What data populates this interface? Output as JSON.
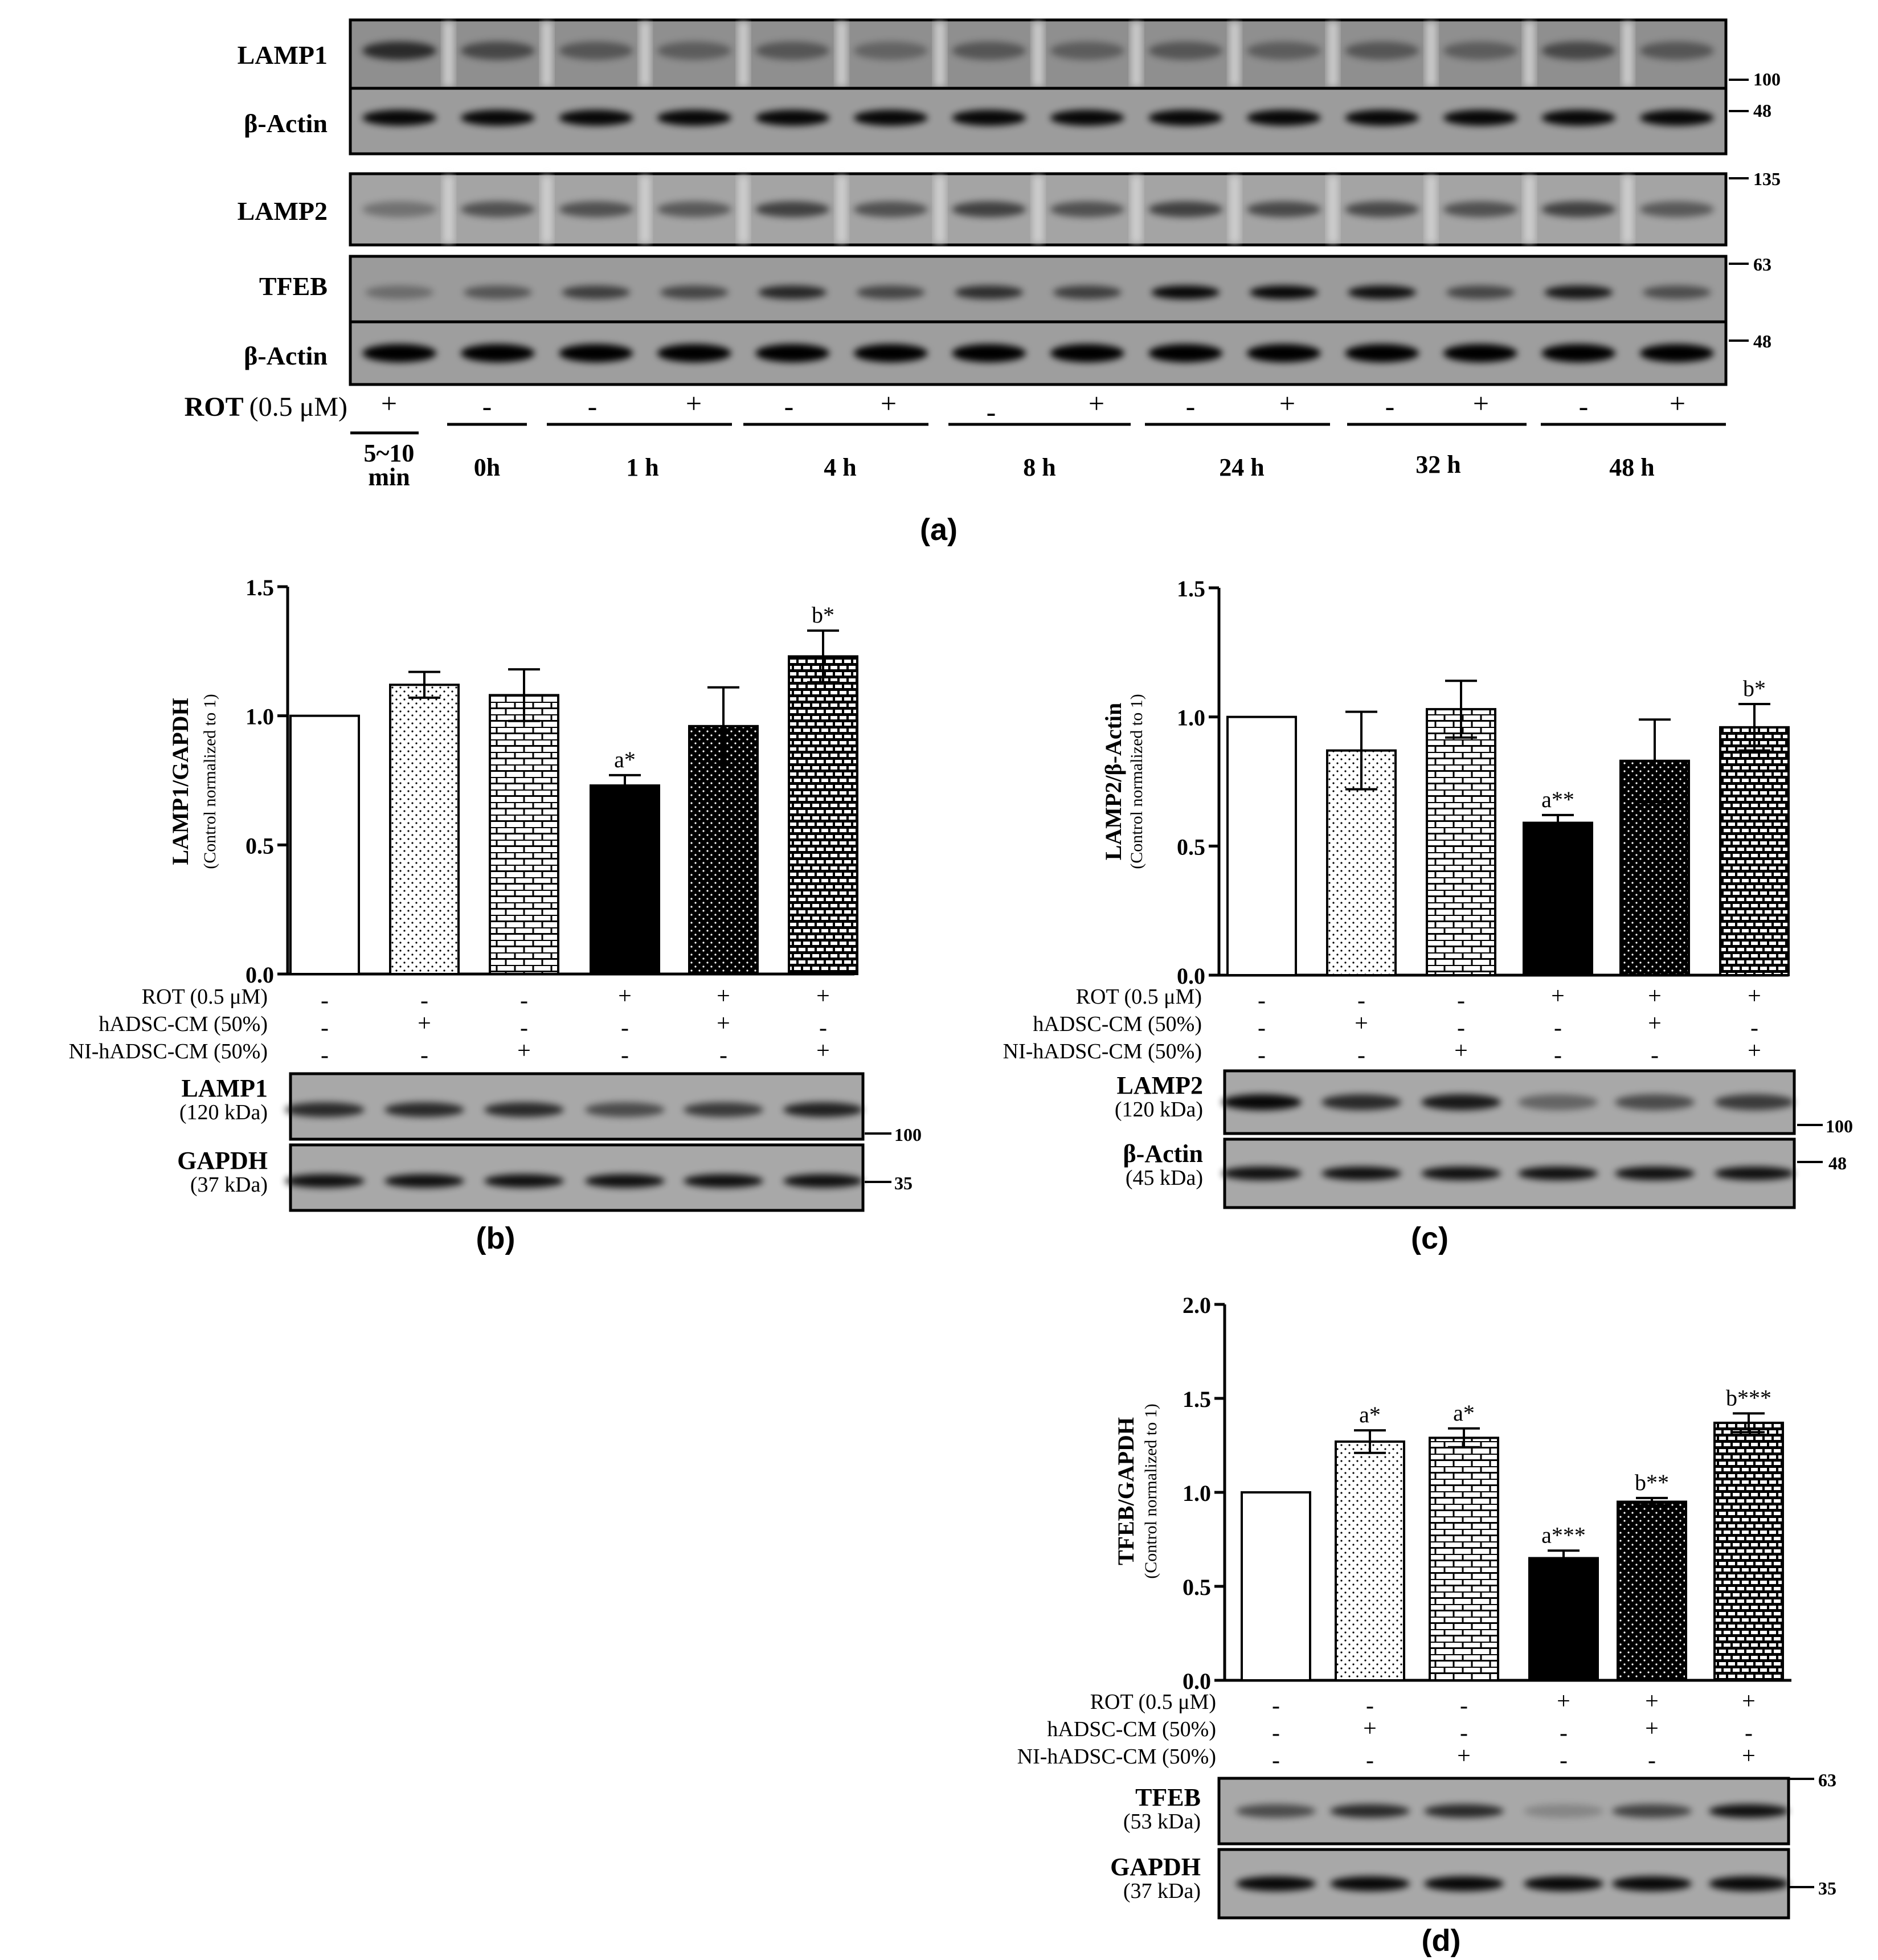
{
  "panel_a": {
    "label": "(a)",
    "blots": [
      {
        "name": "LAMP1",
        "marker": "100"
      },
      {
        "name": "β-Actin",
        "marker": "48"
      },
      {
        "name": "LAMP2",
        "marker": "135"
      },
      {
        "name": "TFEB",
        "marker": "63"
      },
      {
        "name": "β-Actin",
        "marker": "48"
      }
    ],
    "rot_label_bold": "ROT",
    "rot_label_rest": "(0.5 μM)",
    "lane_signs": [
      "+",
      "-",
      "-",
      "+",
      "-",
      "+",
      "-",
      "+",
      "-",
      "+",
      "-",
      "+",
      "-",
      "+"
    ],
    "times": [
      "5~10",
      "min",
      "0h",
      "1 h",
      "4 h",
      "8 h",
      "24 h",
      "32 h",
      "48 h"
    ]
  },
  "panel_b": {
    "label": "(b)",
    "chart_data": {
      "type": "bar",
      "ylabel": "LAMP1/GAPDH",
      "ylabel_sub": "(Control normalized to 1)",
      "ylim": [
        0,
        1.5
      ],
      "yticks": [
        "0.0",
        "0.5",
        "1.0",
        "1.5"
      ],
      "values": [
        1.0,
        1.12,
        1.08,
        0.73,
        0.96,
        1.23
      ],
      "errors": [
        0,
        0.05,
        0.1,
        0.04,
        0.15,
        0.1
      ],
      "annotations": [
        "",
        "",
        "",
        "a*",
        "",
        "b*"
      ],
      "patterns": [
        "white",
        "dots",
        "bricks",
        "black",
        "blackdots",
        "bricks-dark"
      ]
    },
    "conditions": [
      {
        "label": "ROT (0.5 μM)",
        "signs": [
          "-",
          "-",
          "-",
          "+",
          "+",
          "+"
        ]
      },
      {
        "label": "hADSC-CM (50%)",
        "signs": [
          "-",
          "+",
          "-",
          "-",
          "+",
          "-"
        ]
      },
      {
        "label": "NI-hADSC-CM (50%)",
        "signs": [
          "-",
          "-",
          "+",
          "-",
          "-",
          "+"
        ]
      }
    ],
    "blots": [
      {
        "name": "LAMP1",
        "size": "(120 kDa)",
        "marker": "100"
      },
      {
        "name": "GAPDH",
        "size": "(37 kDa)",
        "marker": "35"
      }
    ]
  },
  "panel_c": {
    "label": "(c)",
    "chart_data": {
      "type": "bar",
      "ylabel": "LAMP2/β-Actin",
      "ylabel_sub": "(Control normalized to 1)",
      "ylim": [
        0,
        1.5
      ],
      "yticks": [
        "0.0",
        "0.5",
        "1.0",
        "1.5"
      ],
      "values": [
        1.0,
        0.87,
        1.03,
        0.59,
        0.83,
        0.96
      ],
      "errors": [
        0,
        0.15,
        0.11,
        0.03,
        0.16,
        0.09
      ],
      "annotations": [
        "",
        "",
        "",
        "a**",
        "",
        "b*"
      ],
      "patterns": [
        "white",
        "dots",
        "bricks",
        "black",
        "blackdots",
        "bricks-dark"
      ]
    },
    "conditions": [
      {
        "label": "ROT (0.5 μM)",
        "signs": [
          "-",
          "-",
          "-",
          "+",
          "+",
          "+"
        ]
      },
      {
        "label": "hADSC-CM (50%)",
        "signs": [
          "-",
          "+",
          "-",
          "-",
          "+",
          "-"
        ]
      },
      {
        "label": "NI-hADSC-CM (50%)",
        "signs": [
          "-",
          "-",
          "+",
          "-",
          "-",
          "+"
        ]
      }
    ],
    "blots": [
      {
        "name": "LAMP2",
        "size": "(120 kDa)",
        "marker": "100"
      },
      {
        "name": "β-Actin",
        "size": "(45 kDa)",
        "marker": "48"
      }
    ]
  },
  "panel_d": {
    "label": "(d)",
    "chart_data": {
      "type": "bar",
      "ylabel": "TFEB/GAPDH",
      "ylabel_sub": "(Control normalized to 1)",
      "ylim": [
        0,
        2.0
      ],
      "yticks": [
        "0.0",
        "0.5",
        "1.0",
        "1.5",
        "2.0"
      ],
      "values": [
        1.0,
        1.27,
        1.29,
        0.65,
        0.95,
        1.37
      ],
      "errors": [
        0,
        0.06,
        0.05,
        0.04,
        0.02,
        0.05
      ],
      "annotations": [
        "",
        "a*",
        "a*",
        "a***",
        "b**",
        "b***"
      ],
      "patterns": [
        "white",
        "dots",
        "bricks",
        "black",
        "blackdots",
        "bricks-dark"
      ]
    },
    "conditions": [
      {
        "label": "ROT (0.5 μM)",
        "signs": [
          "-",
          "-",
          "-",
          "+",
          "+",
          "+"
        ]
      },
      {
        "label": "hADSC-CM (50%)",
        "signs": [
          "-",
          "+",
          "-",
          "-",
          "+",
          "-"
        ]
      },
      {
        "label": "NI-hADSC-CM (50%)",
        "signs": [
          "-",
          "-",
          "+",
          "-",
          "-",
          "+"
        ]
      }
    ],
    "blots": [
      {
        "name": "TFEB",
        "size": "(53 kDa)",
        "marker": "63"
      },
      {
        "name": "GAPDH",
        "size": "(37 kDa)",
        "marker": "35"
      }
    ]
  }
}
